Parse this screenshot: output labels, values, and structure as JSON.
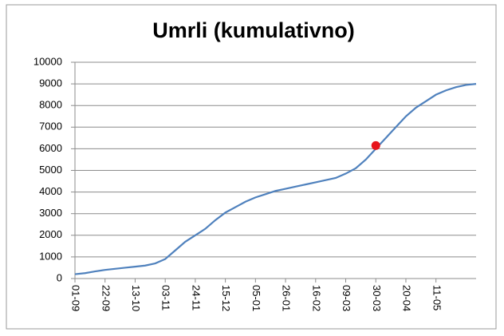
{
  "chart_data": {
    "type": "line",
    "title": "Umrli (kumulativno)",
    "categories": [
      "01-09",
      null,
      null,
      "22-09",
      null,
      null,
      "13-10",
      null,
      null,
      "03-11",
      null,
      null,
      "24-11",
      null,
      null,
      "15-12",
      null,
      null,
      "05-01",
      null,
      null,
      "26-01",
      null,
      null,
      "16-02",
      null,
      null,
      "09-03",
      null,
      null,
      "30-03",
      null,
      null,
      "20-04",
      null,
      null,
      "11-05",
      null,
      null,
      null,
      null
    ],
    "series": [
      {
        "color": "#4f81bd",
        "style": "line",
        "values": [
          200,
          250,
          330,
          400,
          450,
          500,
          550,
          600,
          700,
          900,
          1300,
          1700,
          2000,
          2300,
          2700,
          3050,
          3300,
          3550,
          3750,
          3900,
          4050,
          4150,
          4250,
          4350,
          4450,
          4550,
          4650,
          4850,
          5100,
          5500,
          6000,
          6500,
          7000,
          7500,
          7900,
          8200,
          8500,
          8700,
          8850,
          8950,
          9000
        ]
      },
      {
        "color": "#e8141b",
        "style": "marker",
        "values": [
          null,
          null,
          null,
          null,
          null,
          null,
          null,
          null,
          null,
          null,
          null,
          null,
          null,
          null,
          null,
          null,
          null,
          null,
          null,
          null,
          null,
          null,
          null,
          null,
          null,
          null,
          null,
          null,
          null,
          null,
          6150,
          null,
          null,
          null,
          null,
          null,
          null,
          null,
          null,
          null,
          null
        ]
      }
    ],
    "ylim": [
      0,
      10000
    ],
    "yticks": [
      0,
      1000,
      2000,
      3000,
      4000,
      5000,
      6000,
      7000,
      8000,
      9000,
      10000
    ],
    "grid": true
  }
}
